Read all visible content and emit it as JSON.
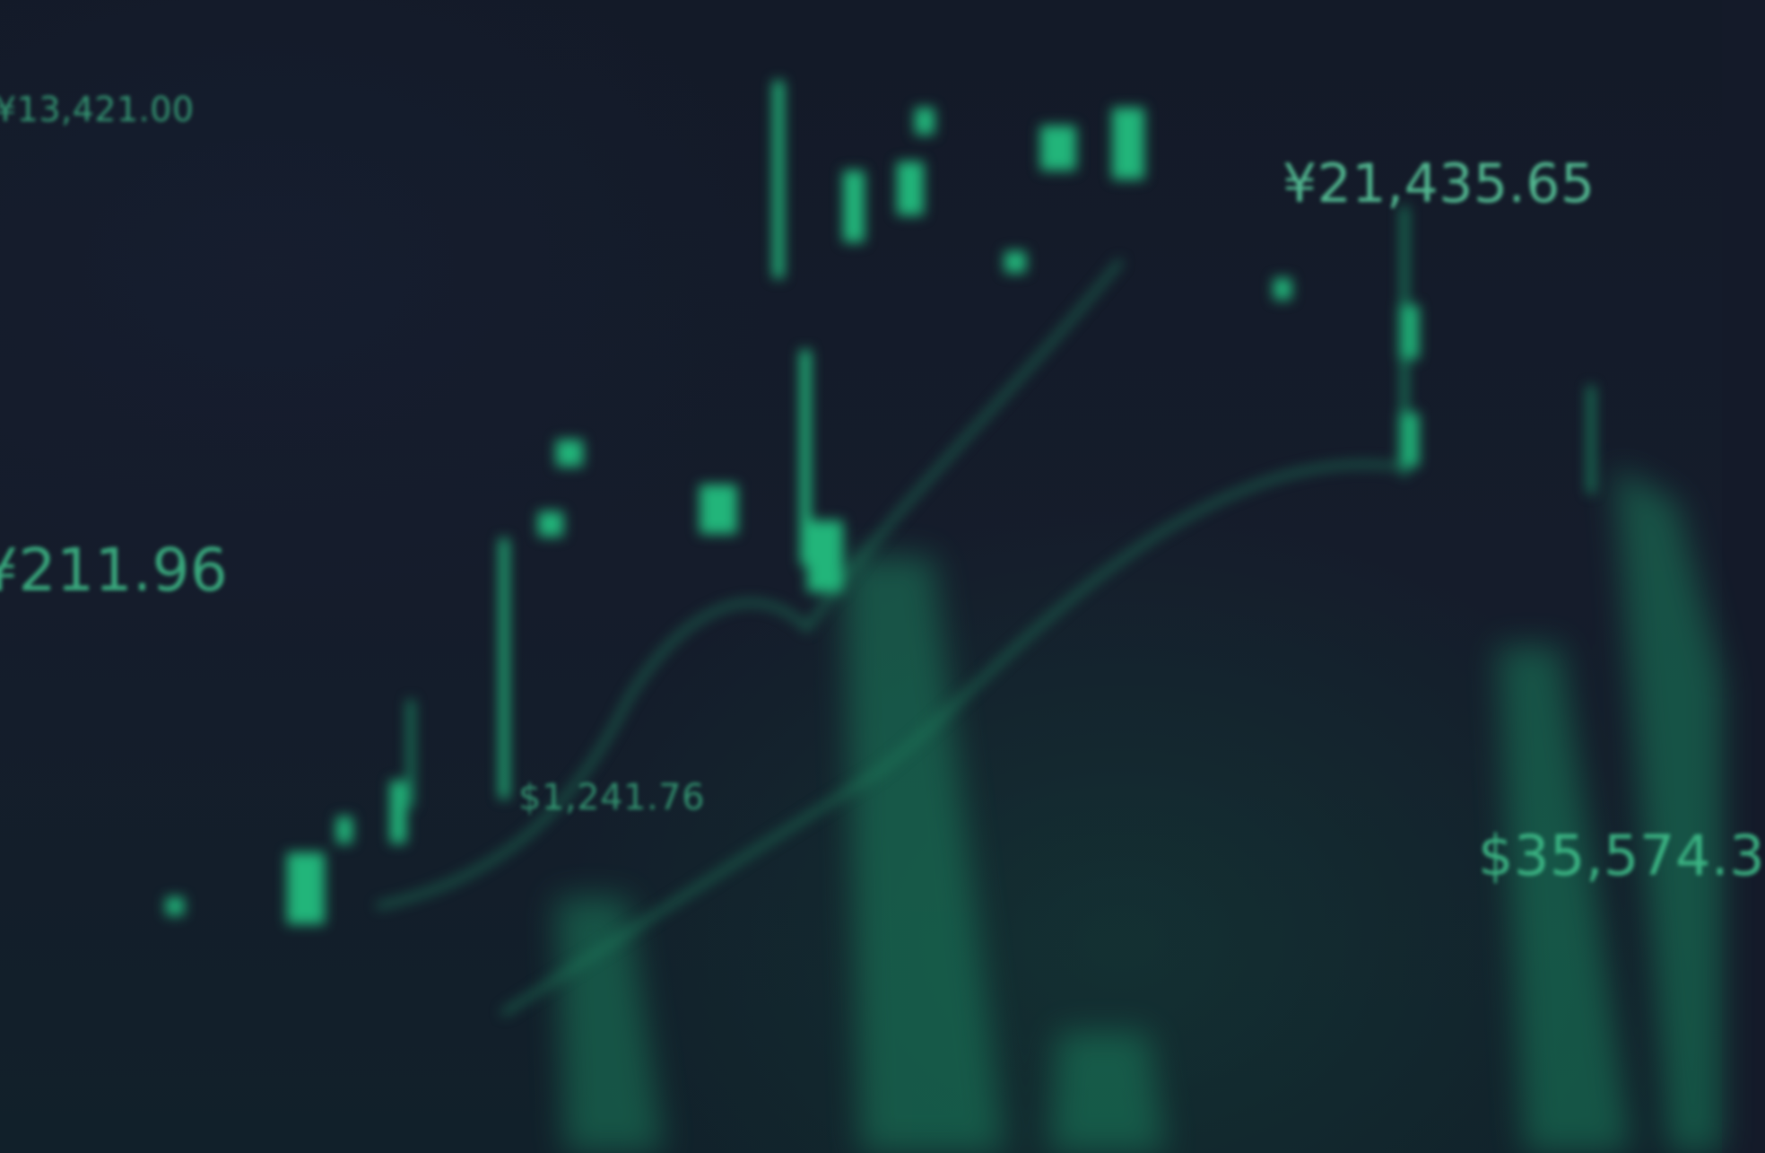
{
  "price_labels": {
    "top_left": "¥13,421.00",
    "mid_left": "¥211.96",
    "center": "$1,241.76",
    "top_right": "¥21,435.65",
    "bottom_right": "$35,574.3"
  },
  "colors": {
    "background": "#141a29",
    "accent_green": "#1fa36e",
    "label_green": "#3fbf8a"
  }
}
